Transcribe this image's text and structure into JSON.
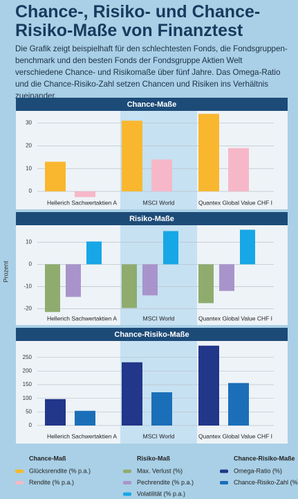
{
  "title": "Chance-, Risiko- und Chance-Risiko-Maße von Finanztest",
  "description": "Die Grafik zeigt beispielhaft für den schlechtesten Fonds, die Fondsgruppen-benchmark und den besten Fonds der Fondsgruppe Aktien Welt verschiedene Chance- und Risikomaße über fünf Jahre. Das Omega-Ratio und die Chance-Risiko-Zahl setzen Chancen und Risiken ins Verhältnis zueinander.",
  "y_label": "Prozent",
  "chart_data": [
    {
      "type": "bar",
      "title": "Chance-Maße",
      "legend_title": "Chance-Maß",
      "categories": [
        "Hellerich Sachwertaktien A",
        "MSCI World",
        "Quantex Global Value CHF I"
      ],
      "series": [
        {
          "name": "Glücksrendite (% p.a.)",
          "color": "#f8b72e",
          "values": [
            13,
            31,
            34
          ]
        },
        {
          "name": "Rendite (% p.a.)",
          "color": "#f6b8c8",
          "values": [
            -2.5,
            14,
            19
          ]
        }
      ],
      "ylim": [
        -3,
        35
      ],
      "yticks": [
        0,
        10,
        20,
        30
      ],
      "grid": true
    },
    {
      "type": "bar",
      "title": "Risiko-Maße",
      "legend_title": "Risiko-Maß",
      "categories": [
        "Hellerich Sachwertaktien A",
        "MSCI World",
        "Quantex Global Value CHF I"
      ],
      "series": [
        {
          "name": "Max. Verlust (%)",
          "color": "#8fac6e",
          "values": [
            -21.5,
            -19.7,
            -17.5
          ]
        },
        {
          "name": "Pechrendite (% p.a.)",
          "color": "#a894cb",
          "values": [
            -14.7,
            -14,
            -12
          ]
        },
        {
          "name": "Volatilität (% p.a.)",
          "color": "#17a7e6",
          "values": [
            10.3,
            15,
            15.6
          ]
        }
      ],
      "ylim": [
        -23,
        17
      ],
      "yticks": [
        -20,
        -10,
        0,
        10
      ],
      "grid": true
    },
    {
      "type": "bar",
      "title": "Chance-Risiko-Maße",
      "legend_title": "Chance-Risiko-Maße",
      "categories": [
        "Hellerich Sachwertaktien A",
        "MSCI World",
        "Quantex Global Value CHF I"
      ],
      "series": [
        {
          "name": "Omega-Ratio (%)",
          "color": "#22368a",
          "values": [
            97,
            232,
            293
          ]
        },
        {
          "name": "Chance-Risiko-Zahl (%)",
          "color": "#1b6fb8",
          "values": [
            54,
            122,
            156
          ]
        }
      ],
      "ylim": [
        0,
        300
      ],
      "yticks": [
        0,
        50,
        100,
        150,
        200,
        250
      ],
      "grid": true
    }
  ]
}
